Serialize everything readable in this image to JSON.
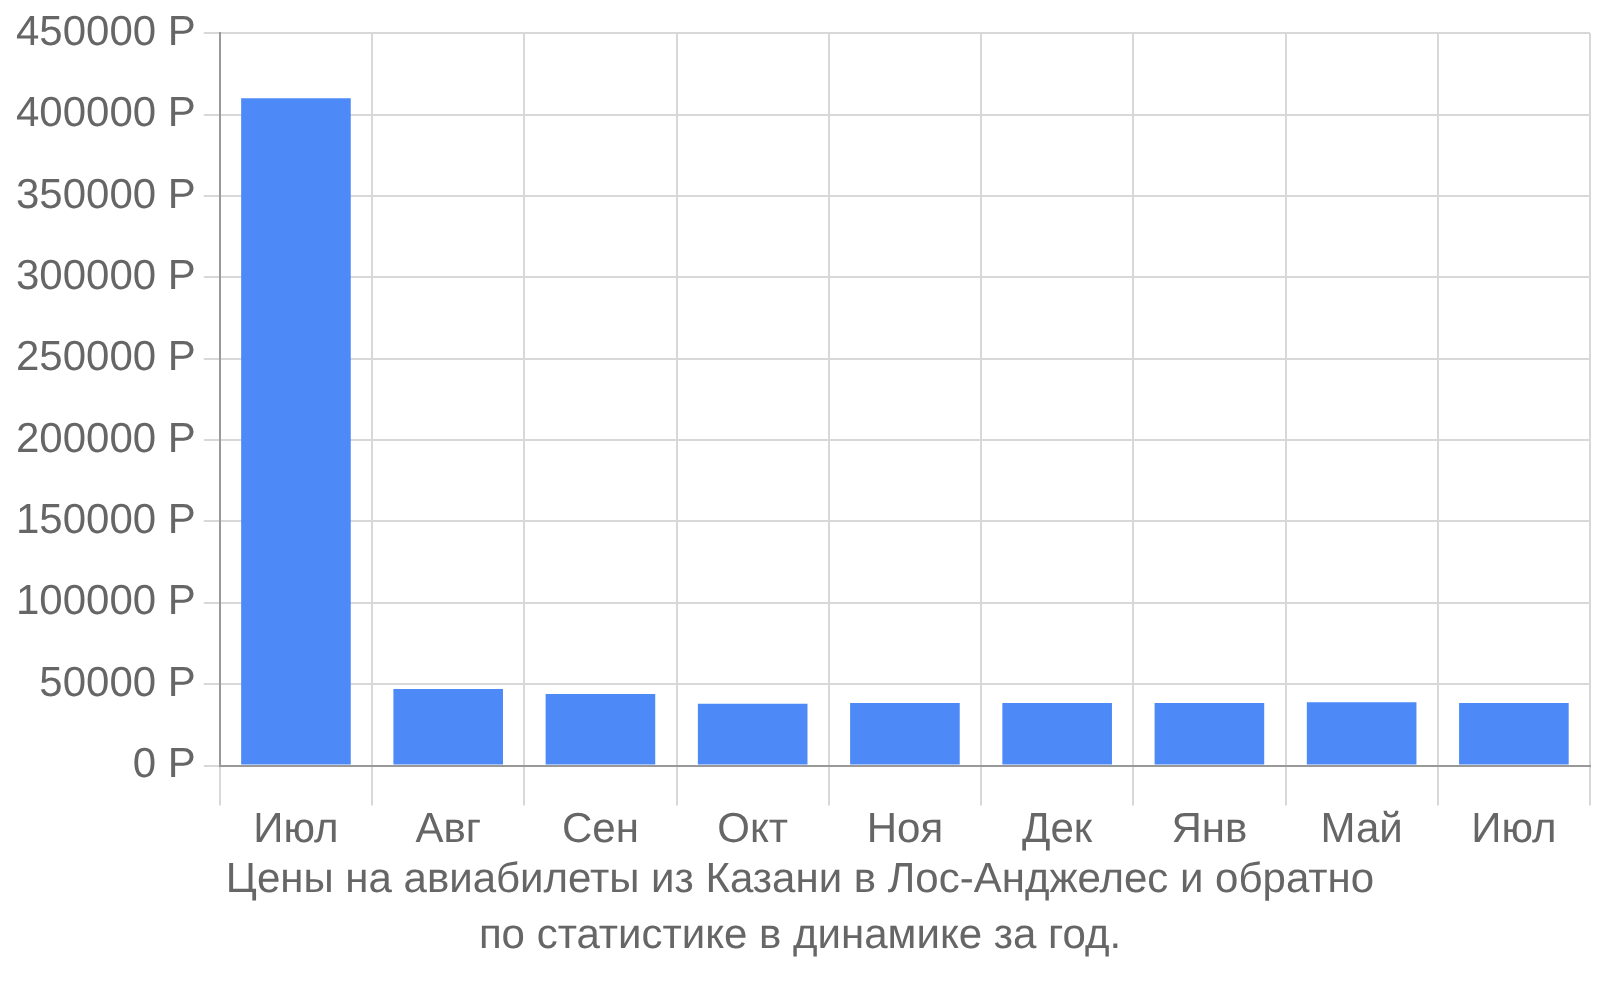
{
  "chart_data": {
    "type": "bar",
    "categories": [
      "Июл",
      "Авг",
      "Сен",
      "Окт",
      "Ноя",
      "Дек",
      "Янв",
      "Май",
      "Июл"
    ],
    "values": [
      410000,
      47000,
      44000,
      38000,
      38500,
      38500,
      38500,
      39000,
      38500
    ],
    "color": "#4d8af8",
    "ylim": [
      0,
      450000
    ],
    "yticks": [
      {
        "value": 0,
        "label": "0 Р"
      },
      {
        "value": 50000,
        "label": "50000 Р"
      },
      {
        "value": 100000,
        "label": "100000 Р"
      },
      {
        "value": 150000,
        "label": "150000 Р"
      },
      {
        "value": 200000,
        "label": "200000 Р"
      },
      {
        "value": 250000,
        "label": "250000 Р"
      },
      {
        "value": 300000,
        "label": "300000 Р"
      },
      {
        "value": 350000,
        "label": "350000 Р"
      },
      {
        "value": 400000,
        "label": "400000 Р"
      },
      {
        "value": 450000,
        "label": "450000 Р"
      }
    ],
    "grid": true,
    "legend": false,
    "annotations": [
      "Цены на авиабилеты из Казани в Лос-Анджелес и обратно",
      "по статистике в динамике за год."
    ]
  }
}
